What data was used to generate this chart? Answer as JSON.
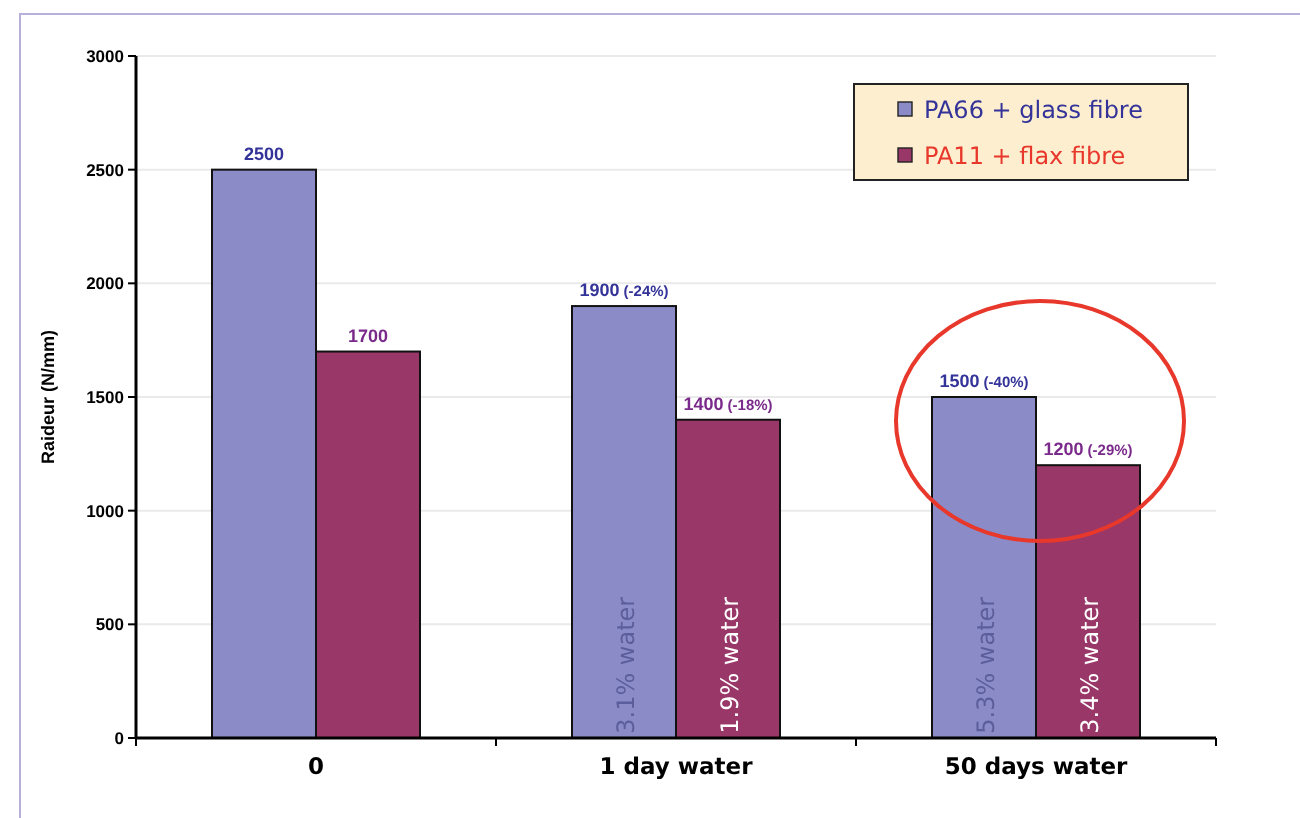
{
  "chart_data": {
    "type": "bar",
    "ylabel": "Raideur (N/mm)",
    "categories": [
      "0",
      "1 day water",
      "50 days water"
    ],
    "series": [
      {
        "name": "PA66 + glass fibre",
        "color": "#8b8cc7",
        "values": [
          2500,
          1900,
          1500
        ],
        "value_labels": [
          "2500",
          "1900 (-24%)",
          "1500 (-40%)"
        ]
      },
      {
        "name": "PA11 + flax fibre",
        "color": "#993768",
        "values": [
          1700,
          1400,
          1200
        ],
        "value_labels": [
          "1700",
          "1400 (-18%)",
          "1200 (-29%)"
        ]
      }
    ],
    "ylim": [
      0,
      3000
    ],
    "yticks": [
      0,
      500,
      1000,
      1500,
      2000,
      2500,
      3000
    ],
    "grid": "y",
    "legend": "top right",
    "annotations": [
      {
        "text": "3.1% water",
        "x": "1 day water",
        "y": 320
      },
      {
        "text": "1.9% water",
        "x": "1 day water",
        "y": 320
      },
      {
        "text": "5.3% water",
        "x": "50 days water",
        "y": 320
      },
      {
        "text": "3.4% water",
        "x": "50 days water",
        "y": 320
      }
    ]
  }
}
